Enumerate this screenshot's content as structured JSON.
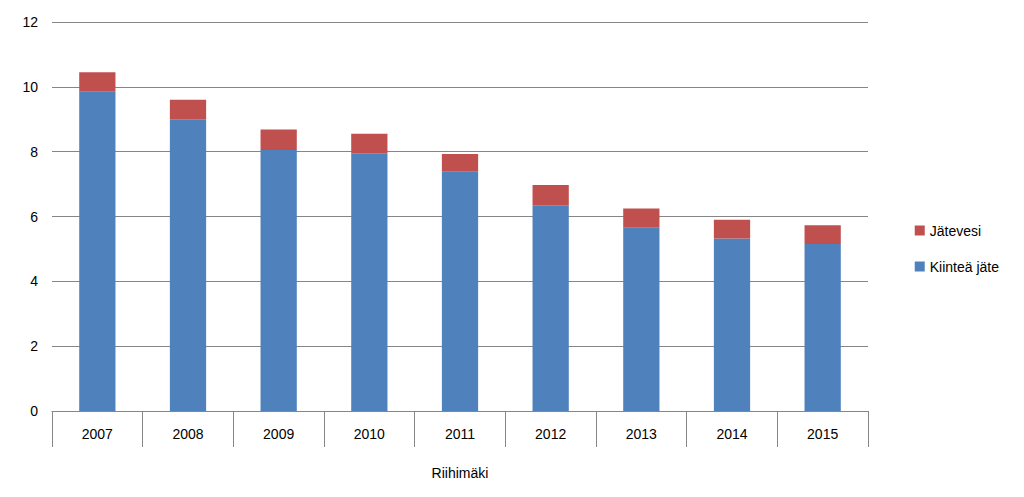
{
  "chart_data": {
    "type": "bar",
    "stacked": true,
    "grid": true,
    "legend": "right",
    "x_label": "Riihimäki",
    "categories": [
      "2007",
      "2008",
      "2009",
      "2010",
      "2011",
      "2012",
      "2013",
      "2014",
      "2015"
    ],
    "series": [
      {
        "name": "Kiinteä jäte",
        "color": "#4f81bd",
        "values": [
          9.85,
          9.0,
          8.05,
          7.95,
          7.38,
          6.35,
          5.65,
          5.32,
          5.15
        ]
      },
      {
        "name": "Jätevesi",
        "color": "#c0504d",
        "values": [
          0.6,
          0.6,
          0.63,
          0.6,
          0.55,
          0.62,
          0.6,
          0.58,
          0.58
        ]
      }
    ],
    "ylim": [
      0,
      12
    ],
    "yticks": [
      0,
      2,
      4,
      6,
      8,
      10,
      12
    ]
  }
}
